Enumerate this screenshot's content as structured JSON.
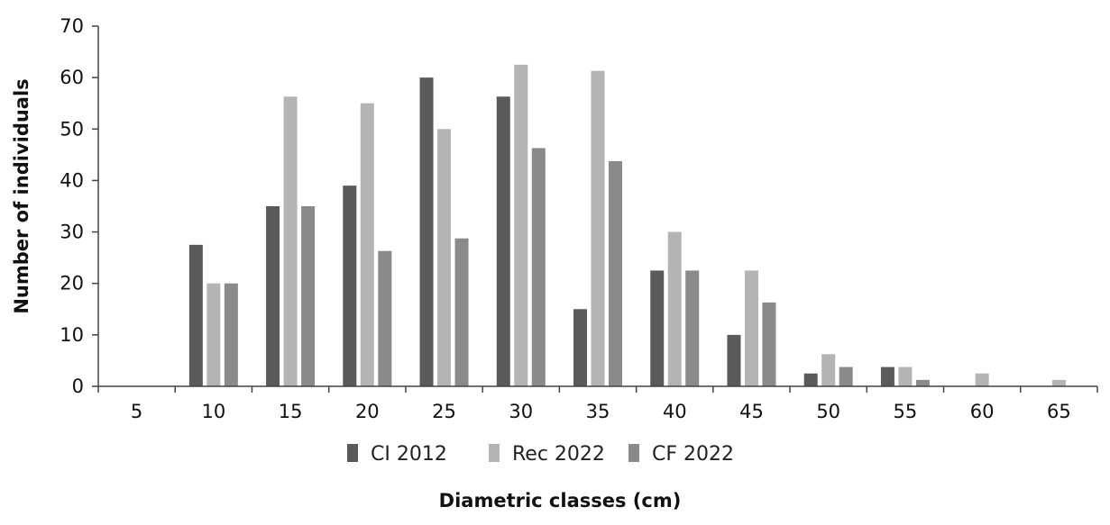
{
  "chart_data": {
    "type": "bar",
    "xlabel": "Diametric classes (cm)",
    "ylabel": "Number of individuals",
    "categories": [
      "5",
      "10",
      "15",
      "20",
      "25",
      "30",
      "35",
      "40",
      "45",
      "50",
      "55",
      "60",
      "65"
    ],
    "ylim": [
      0,
      70
    ],
    "yticks": [
      0,
      10,
      20,
      30,
      40,
      50,
      60,
      70
    ],
    "grid": false,
    "legend_position": "bottom",
    "series": [
      {
        "name": "CI 2012",
        "color": "#5a5a5a",
        "values": [
          0,
          27.5,
          35,
          39,
          60,
          56.3,
          15,
          22.5,
          10,
          2.5,
          3.75,
          0,
          0
        ]
      },
      {
        "name": "Rec 2022",
        "color": "#b4b4b4",
        "values": [
          0,
          20,
          56.3,
          55,
          50,
          62.5,
          61.3,
          30,
          22.5,
          6.25,
          3.75,
          2.5,
          1.25
        ]
      },
      {
        "name": "CF 2022",
        "color": "#8a8a8a",
        "values": [
          0,
          20,
          35,
          26.3,
          28.75,
          46.3,
          43.75,
          22.5,
          16.3,
          3.75,
          1.25,
          0,
          0
        ]
      }
    ]
  }
}
